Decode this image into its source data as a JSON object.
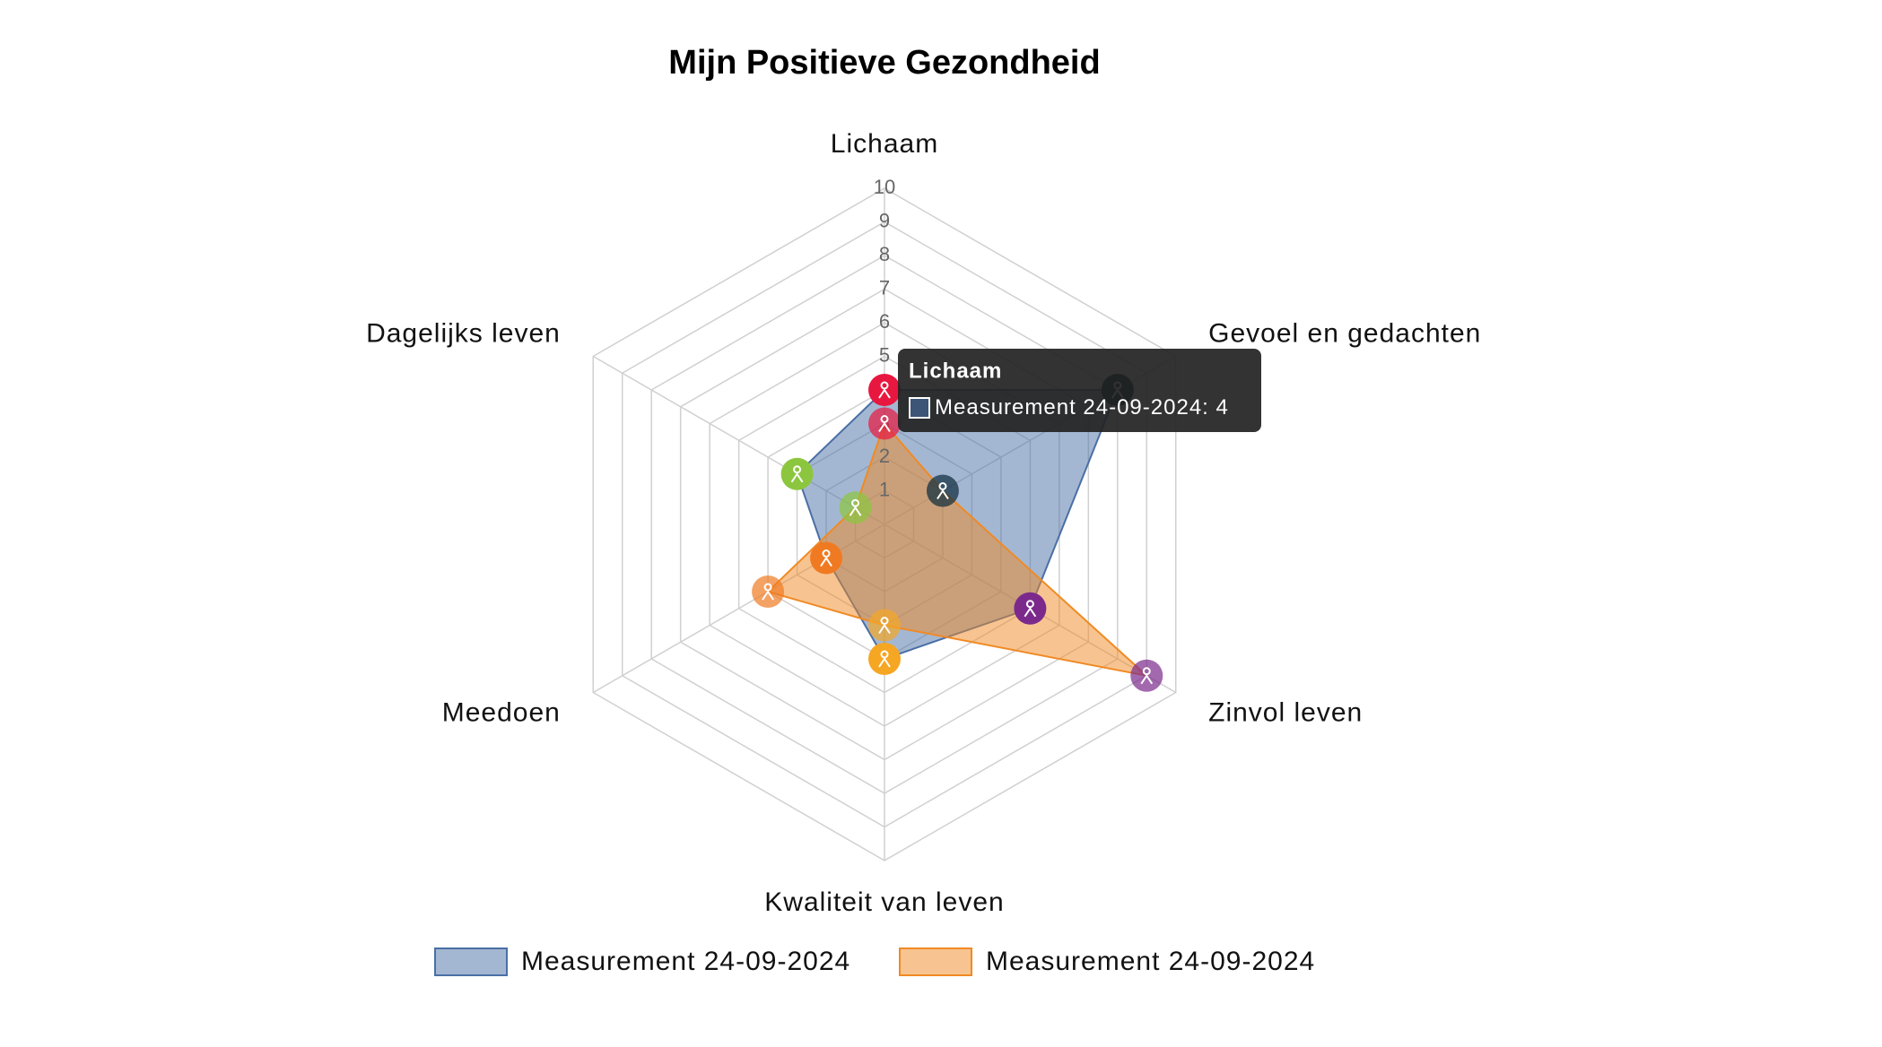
{
  "chart_data": {
    "type": "radar",
    "title": "Mijn Positieve Gezondheid",
    "categories": [
      "Lichaam",
      "Gevoel en gedachten",
      "Zinvol leven",
      "Kwaliteit van leven",
      "Meedoen",
      "Dagelijks leven"
    ],
    "point_colors": [
      "#e8173f",
      "#0b2a3a",
      "#7b2a8c",
      "#f5a623",
      "#f07a22",
      "#8cc63f"
    ],
    "series": [
      {
        "name": "Measurement 24-09-2024",
        "color": "#4a6fa5",
        "values": [
          4,
          8,
          5,
          4,
          2,
          3
        ]
      },
      {
        "name": "Measurement 24-09-2024",
        "color": "#f08a24",
        "values": [
          3,
          2,
          9,
          3,
          4,
          1
        ]
      }
    ],
    "ylim": [
      0,
      10
    ],
    "yticks": [
      1,
      2,
      3,
      4,
      5,
      6,
      7,
      8,
      9,
      10
    ],
    "grid": true,
    "tooltip": {
      "title": "Lichaam",
      "series": 0,
      "index": 0
    }
  }
}
